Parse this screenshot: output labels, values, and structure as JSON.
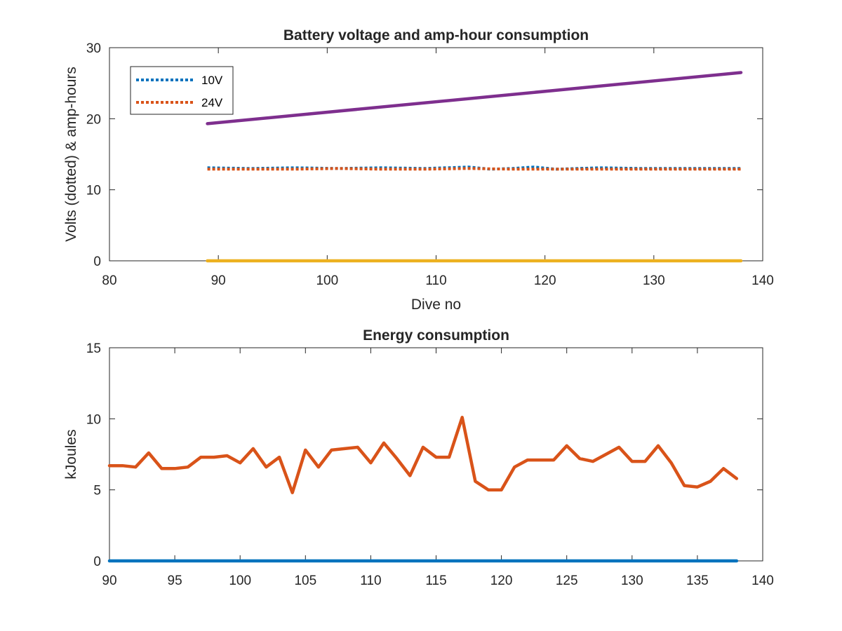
{
  "chart_data": [
    {
      "type": "line",
      "title": "Battery voltage and amp-hour consumption",
      "xlabel": "Dive no",
      "ylabel": "Volts (dotted) & amp-hours",
      "xlim": [
        80,
        140
      ],
      "ylim": [
        0,
        30
      ],
      "xticks": [
        "80",
        "90",
        "100",
        "110",
        "120",
        "130",
        "140"
      ],
      "yticks": [
        "0",
        "10",
        "20",
        "30"
      ],
      "legend_position": "top-left",
      "series": [
        {
          "name": "10V",
          "style": "dotted",
          "color": "#0072bd",
          "x": [
            89,
            93,
            97,
            101,
            105,
            109,
            113,
            115,
            117,
            119,
            121,
            125,
            129,
            133,
            138
          ],
          "y": [
            13.1,
            13.0,
            13.1,
            13.0,
            13.1,
            13.0,
            13.2,
            12.9,
            13.0,
            13.2,
            12.9,
            13.1,
            13.0,
            13.0,
            13.0
          ]
        },
        {
          "name": "24V",
          "style": "dotted",
          "color": "#d95319",
          "x": [
            89,
            93,
            97,
            101,
            105,
            109,
            113,
            117,
            121,
            125,
            129,
            133,
            138
          ],
          "y": [
            12.9,
            12.9,
            12.9,
            13.0,
            12.9,
            12.9,
            13.0,
            12.9,
            12.9,
            12.9,
            12.9,
            12.9,
            12.9
          ]
        },
        {
          "style": "solid",
          "color": "#7e2f8e",
          "x": [
            89,
            138
          ],
          "y": [
            19.3,
            26.5
          ]
        },
        {
          "style": "solid",
          "color": "#edb120",
          "x": [
            89,
            138
          ],
          "y": [
            0,
            0
          ]
        }
      ]
    },
    {
      "type": "line",
      "title": "Energy consumption",
      "xlabel": "",
      "ylabel": "kJoules",
      "xlim": [
        90,
        140
      ],
      "ylim": [
        0,
        15
      ],
      "xticks": [
        "90",
        "95",
        "100",
        "105",
        "110",
        "115",
        "120",
        "125",
        "130",
        "135",
        "140"
      ],
      "yticks": [
        "0",
        "5",
        "10",
        "15"
      ],
      "series": [
        {
          "style": "solid",
          "color": "#d95319",
          "x": [
            90,
            91,
            92,
            93,
            94,
            95,
            96,
            97,
            98,
            99,
            100,
            101,
            102,
            103,
            104,
            105,
            106,
            107,
            108,
            109,
            110,
            111,
            112,
            113,
            114,
            115,
            116,
            117,
            118,
            119,
            120,
            121,
            122,
            123,
            124,
            125,
            126,
            127,
            128,
            129,
            130,
            131,
            132,
            133,
            134,
            135,
            136,
            137,
            138
          ],
          "y": [
            6.7,
            6.7,
            6.6,
            7.6,
            6.5,
            6.5,
            6.6,
            7.3,
            7.3,
            7.4,
            6.9,
            7.9,
            6.6,
            7.3,
            4.8,
            7.8,
            6.6,
            7.8,
            7.9,
            8.0,
            6.9,
            8.3,
            7.2,
            6.0,
            8.0,
            7.3,
            7.3,
            10.1,
            5.6,
            5.0,
            5.0,
            6.6,
            7.1,
            7.1,
            7.1,
            8.1,
            7.2,
            7.0,
            7.5,
            8.0,
            7.0,
            7.0,
            8.1,
            6.9,
            5.3,
            5.2,
            5.6,
            6.5,
            5.8
          ]
        },
        {
          "style": "solid",
          "color": "#0072bd",
          "x": [
            90,
            138
          ],
          "y": [
            0,
            0
          ]
        }
      ]
    }
  ]
}
